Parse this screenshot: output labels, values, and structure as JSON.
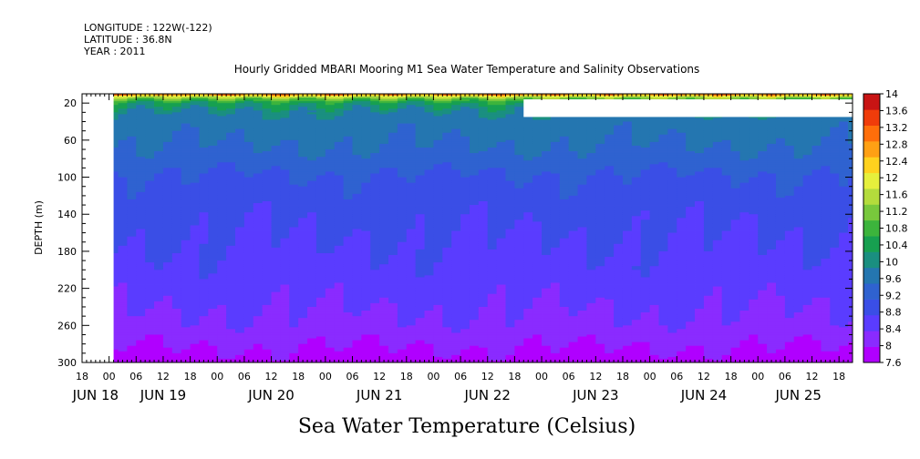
{
  "header": {
    "longitude": "LONGITUDE : 122W(-122)",
    "latitude": "LATITUDE : 36.8N",
    "year": "YEAR : 2011"
  },
  "chart_data": {
    "type": "heatmap",
    "title": "Hourly Gridded MBARI Mooring M1 Sea Water Temperature and Salinity Observations",
    "xlabel": "Sea Water Temperature (Celsius)",
    "ylabel": "DEPTH (m)",
    "y_ticks": [
      20,
      60,
      100,
      140,
      180,
      220,
      260,
      300
    ],
    "ylim": [
      300,
      10
    ],
    "y_reversed": true,
    "x_range_hours": [
      "JUN 18 18:00",
      "JUN 25 21:00"
    ],
    "x_hour_ticks": [
      "18",
      "00",
      "06",
      "12",
      "18",
      "00",
      "06",
      "12",
      "18",
      "00",
      "06",
      "12",
      "18",
      "00",
      "06",
      "12",
      "18",
      "00",
      "06",
      "12",
      "18",
      "00",
      "06",
      "12",
      "18",
      "00",
      "06",
      "12",
      "18"
    ],
    "x_day_labels": [
      "JUN 18",
      "JUN 19",
      "JUN 20",
      "JUN 21",
      "JUN 22",
      "JUN 23",
      "JUN 24",
      "JUN 25"
    ],
    "colorbar": {
      "levels": [
        7.6,
        8,
        8.4,
        8.8,
        9.2,
        9.6,
        10,
        10.4,
        10.8,
        11.2,
        11.6,
        12,
        12.4,
        12.8,
        13.2,
        13.6,
        14
      ],
      "colors": [
        "#b000ff",
        "#8a2bff",
        "#5a3cff",
        "#3a4ee6",
        "#2f62d0",
        "#2476b0",
        "#1a8f80",
        "#17a050",
        "#3cb43c",
        "#78c83c",
        "#b4dc3c",
        "#e6f03c",
        "#ffd21e",
        "#ffa014",
        "#ff6e0a",
        "#f03c0a",
        "#c81414"
      ]
    },
    "profile": [
      {
        "depth": 10,
        "temp": 13.4
      },
      {
        "depth": 14,
        "temp": 11.6
      },
      {
        "depth": 20,
        "temp": 10.5
      },
      {
        "depth": 30,
        "temp": 10.0
      },
      {
        "depth": 40,
        "temp": 9.8
      },
      {
        "depth": 60,
        "temp": 9.65
      },
      {
        "depth": 80,
        "temp": 9.45
      },
      {
        "depth": 100,
        "temp": 9.15
      },
      {
        "depth": 140,
        "temp": 8.9
      },
      {
        "depth": 180,
        "temp": 8.75
      },
      {
        "depth": 220,
        "temp": 8.55
      },
      {
        "depth": 260,
        "temp": 8.3
      },
      {
        "depth": 280,
        "temp": 8.05
      },
      {
        "depth": 300,
        "temp": 7.8
      }
    ],
    "missing_regions": [
      {
        "x_from": "JUN 18 18:00",
        "x_to": "JUN 19 01:00",
        "depth_from": 10,
        "depth_to": 300
      },
      {
        "x_from": "JUN 22 20:00",
        "x_to": "JUN 25 21:00",
        "depth_from": 16,
        "depth_to": 35
      }
    ]
  }
}
